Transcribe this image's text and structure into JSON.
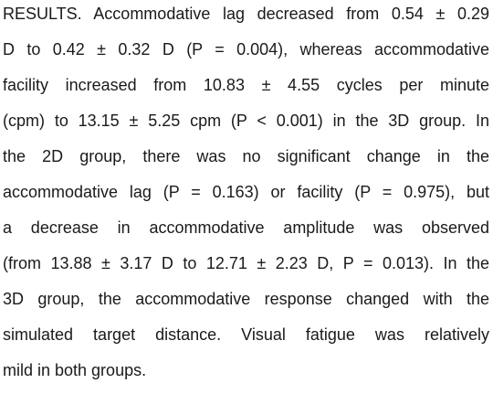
{
  "paragraph": {
    "lines": [
      "RESULTS. Accommodative lag decreased from 0.54 ± 0.29",
      "D to 0.42 ± 0.32 D (P = 0.004), whereas accommodative",
      "facility increased from 10.83 ± 4.55 cycles per minute",
      "(cpm) to 13.15 ± 5.25 cpm (P < 0.001) in the 3D group. In",
      "the 2D group, there was no significant change in the",
      "accommodative lag (P = 0.163) or facility (P = 0.975), but",
      "a decrease in accommodative amplitude was observed",
      "(from 13.88 ± 3.17 D to 12.71 ± 2.23 D, P = 0.013). In the",
      "3D group, the accommodative response changed with the",
      "simulated target distance. Visual fatigue was relatively",
      "mild in both groups."
    ]
  }
}
